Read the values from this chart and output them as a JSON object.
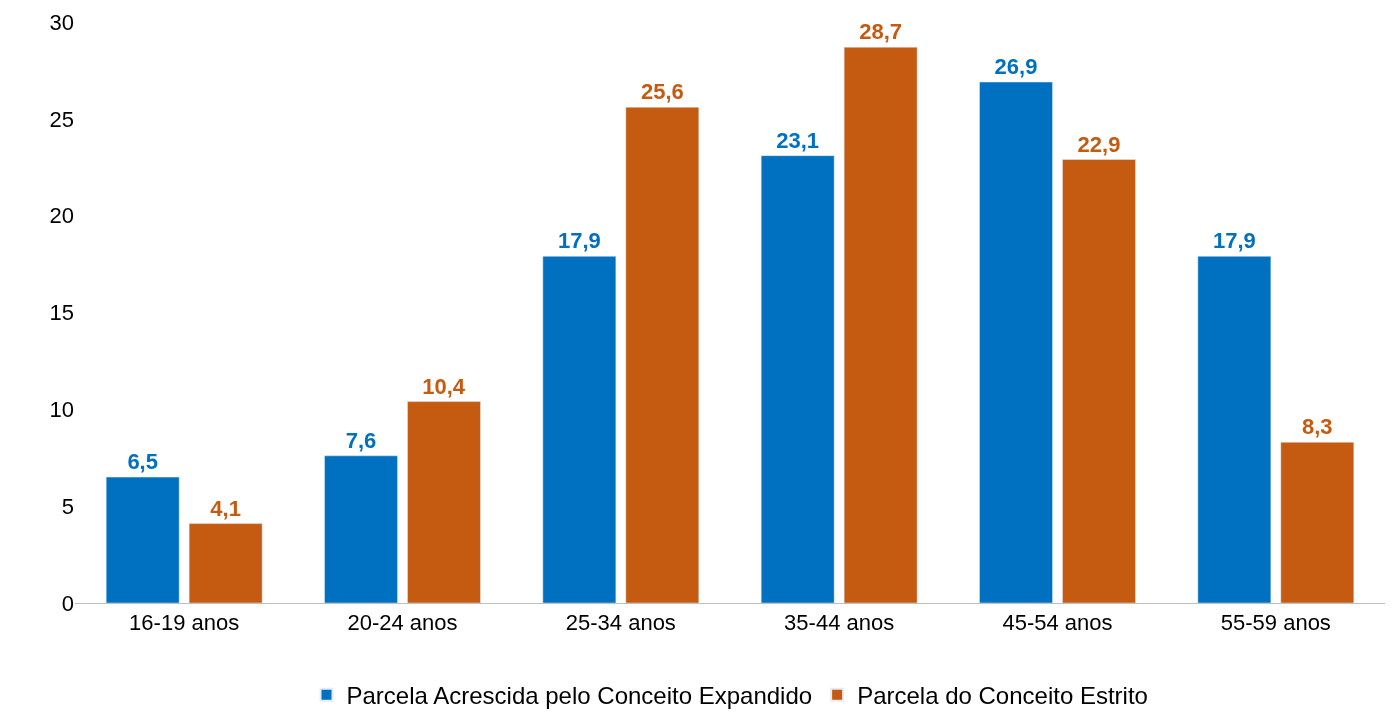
{
  "chart_data": {
    "type": "bar",
    "categories": [
      "16-19 anos",
      "20-24 anos",
      "25-34 anos",
      "35-44 anos",
      "45-54 anos",
      "55-59 anos"
    ],
    "series": [
      {
        "name": "Parcela Acrescida pelo Conceito Expandido",
        "color": "#0070c0",
        "values": [
          6.5,
          7.6,
          17.9,
          23.1,
          26.9,
          17.9
        ],
        "value_labels": [
          "6,5",
          "7,6",
          "17,9",
          "23,1",
          "26,9",
          "17,9"
        ]
      },
      {
        "name": "Parcela do Conceito Estrito",
        "color": "#c55a11",
        "values": [
          4.1,
          10.4,
          25.6,
          28.7,
          22.9,
          8.3
        ],
        "value_labels": [
          "4,1",
          "10,4",
          "25,6",
          "28,7",
          "22,9",
          "8,3"
        ]
      }
    ],
    "ylim": [
      0,
      30
    ],
    "yticks": [
      0,
      5,
      10,
      15,
      20,
      25,
      30
    ],
    "legend": "bottom"
  }
}
